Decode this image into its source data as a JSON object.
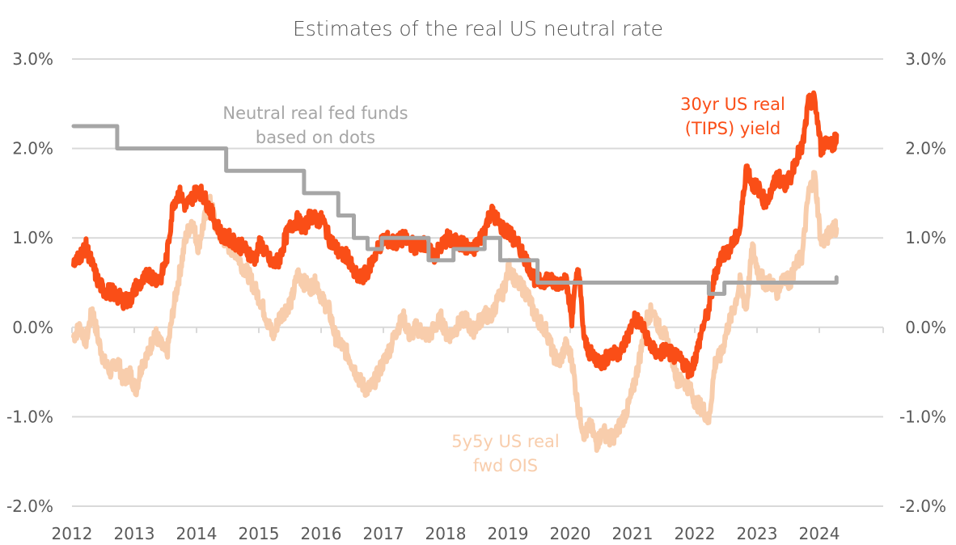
{
  "chart_data": {
    "type": "line",
    "title": "Estimates of the real US neutral rate",
    "xlabel": "",
    "ylabel": "",
    "xlim": [
      2012,
      2025
    ],
    "ylim": [
      -2.0,
      3.0
    ],
    "y_ticks": [
      -2.0,
      -1.0,
      0.0,
      1.0,
      2.0,
      3.0
    ],
    "y_tick_labels": [
      "-2.0%",
      "-1.0%",
      "0.0%",
      "1.0%",
      "2.0%",
      "3.0%"
    ],
    "y_axis_sides": [
      "left",
      "right"
    ],
    "x_ticks": [
      2012,
      2013,
      2014,
      2015,
      2016,
      2017,
      2018,
      2019,
      2020,
      2021,
      2022,
      2023,
      2024
    ],
    "x_tick_labels": [
      "2012",
      "2013",
      "2014",
      "2015",
      "2016",
      "2017",
      "2018",
      "2019",
      "2020",
      "2021",
      "2022",
      "2023",
      "2024"
    ],
    "grid": true,
    "legend": "none (inline annotations)",
    "series": [
      {
        "name": "5y5y US real fwd OIS",
        "label_lines": [
          "5y5y US real",
          "fwd OIS"
        ],
        "label_position": "bottom-center",
        "color": "#f8cdac",
        "x": [
          2012.0,
          2012.1,
          2012.2,
          2012.3,
          2012.4,
          2012.5,
          2012.6,
          2012.7,
          2012.8,
          2012.9,
          2013.0,
          2013.1,
          2013.2,
          2013.3,
          2013.4,
          2013.5,
          2013.6,
          2013.7,
          2013.8,
          2013.9,
          2014.0,
          2014.1,
          2014.2,
          2014.3,
          2014.4,
          2014.5,
          2014.6,
          2014.7,
          2014.8,
          2014.9,
          2015.0,
          2015.1,
          2015.2,
          2015.3,
          2015.4,
          2015.5,
          2015.6,
          2015.7,
          2015.8,
          2015.9,
          2016.0,
          2016.1,
          2016.2,
          2016.3,
          2016.4,
          2016.5,
          2016.6,
          2016.7,
          2016.8,
          2016.9,
          2017.0,
          2017.1,
          2017.2,
          2017.3,
          2017.4,
          2017.5,
          2017.6,
          2017.7,
          2017.8,
          2017.9,
          2018.0,
          2018.1,
          2018.2,
          2018.3,
          2018.4,
          2018.5,
          2018.6,
          2018.7,
          2018.8,
          2018.9,
          2019.0,
          2019.1,
          2019.2,
          2019.3,
          2019.4,
          2019.5,
          2019.6,
          2019.7,
          2019.8,
          2019.9,
          2020.0,
          2020.1,
          2020.2,
          2020.3,
          2020.4,
          2020.5,
          2020.6,
          2020.7,
          2020.8,
          2020.9,
          2021.0,
          2021.1,
          2021.2,
          2021.3,
          2021.4,
          2021.5,
          2021.6,
          2021.7,
          2021.8,
          2021.9,
          2022.0,
          2022.1,
          2022.2,
          2022.3,
          2022.4,
          2022.5,
          2022.6,
          2022.7,
          2022.8,
          2022.9,
          2023.0,
          2023.1,
          2023.2,
          2023.3,
          2023.4,
          2023.5,
          2023.6,
          2023.7,
          2023.8,
          2023.9,
          2024.0,
          2024.1,
          2024.2,
          2024.25
        ],
        "values": [
          -0.1,
          0.0,
          -0.15,
          0.2,
          -0.15,
          -0.4,
          -0.5,
          -0.35,
          -0.6,
          -0.5,
          -0.7,
          -0.4,
          -0.3,
          -0.05,
          -0.2,
          -0.3,
          0.2,
          0.6,
          1.0,
          1.2,
          0.9,
          1.2,
          1.4,
          1.1,
          1.0,
          0.9,
          0.85,
          0.7,
          0.6,
          0.45,
          0.3,
          0.1,
          -0.1,
          0.1,
          0.2,
          0.3,
          0.6,
          0.5,
          0.45,
          0.5,
          0.3,
          0.2,
          -0.1,
          -0.2,
          -0.3,
          -0.45,
          -0.6,
          -0.7,
          -0.65,
          -0.5,
          -0.35,
          -0.2,
          0.0,
          0.1,
          -0.1,
          0.0,
          -0.05,
          -0.1,
          0.0,
          0.1,
          -0.1,
          -0.05,
          0.05,
          0.1,
          -0.05,
          0.05,
          0.15,
          0.1,
          0.3,
          0.4,
          0.7,
          0.5,
          0.45,
          0.35,
          0.15,
          0.05,
          -0.05,
          -0.3,
          -0.4,
          -0.2,
          -0.35,
          -0.9,
          -1.2,
          -1.1,
          -1.3,
          -1.15,
          -1.25,
          -1.2,
          -1.05,
          -0.9,
          -0.65,
          -0.3,
          0.1,
          0.2,
          0.0,
          -0.1,
          -0.3,
          -0.6,
          -0.6,
          -0.7,
          -0.85,
          -0.9,
          -1.05,
          -0.4,
          -0.3,
          0.0,
          0.2,
          0.5,
          0.2,
          0.9,
          0.6,
          0.5,
          0.5,
          0.4,
          0.6,
          0.5,
          0.7,
          0.8,
          1.5,
          1.7,
          0.95,
          1.0,
          1.15,
          1.1
        ]
      },
      {
        "name": "30yr US real (TIPS) yield",
        "label_lines": [
          "30yr US real",
          "(TIPS) yield"
        ],
        "label_position": "top-right",
        "color": "#fa4e17",
        "x": [
          2012.0,
          2012.1,
          2012.2,
          2012.3,
          2012.4,
          2012.5,
          2012.6,
          2012.7,
          2012.8,
          2012.9,
          2013.0,
          2013.1,
          2013.2,
          2013.3,
          2013.4,
          2013.5,
          2013.6,
          2013.7,
          2013.8,
          2013.9,
          2014.0,
          2014.1,
          2014.2,
          2014.3,
          2014.4,
          2014.5,
          2014.6,
          2014.7,
          2014.8,
          2014.9,
          2015.0,
          2015.1,
          2015.2,
          2015.3,
          2015.4,
          2015.5,
          2015.6,
          2015.7,
          2015.8,
          2015.9,
          2016.0,
          2016.1,
          2016.2,
          2016.3,
          2016.4,
          2016.5,
          2016.6,
          2016.7,
          2016.8,
          2016.9,
          2017.0,
          2017.1,
          2017.2,
          2017.3,
          2017.4,
          2017.5,
          2017.6,
          2017.7,
          2017.8,
          2017.9,
          2018.0,
          2018.1,
          2018.2,
          2018.3,
          2018.4,
          2018.5,
          2018.6,
          2018.7,
          2018.8,
          2018.9,
          2019.0,
          2019.1,
          2019.2,
          2019.3,
          2019.4,
          2019.5,
          2019.6,
          2019.7,
          2019.8,
          2019.9,
          2020.0,
          2020.1,
          2020.2,
          2020.3,
          2020.4,
          2020.5,
          2020.6,
          2020.7,
          2020.8,
          2020.9,
          2021.0,
          2021.1,
          2021.2,
          2021.3,
          2021.4,
          2021.5,
          2021.6,
          2021.7,
          2021.8,
          2021.9,
          2022.0,
          2022.1,
          2022.2,
          2022.3,
          2022.4,
          2022.5,
          2022.6,
          2022.7,
          2022.8,
          2022.9,
          2023.0,
          2023.1,
          2023.2,
          2023.3,
          2023.4,
          2023.5,
          2023.6,
          2023.7,
          2023.8,
          2023.9,
          2024.0,
          2024.1,
          2024.2,
          2024.25
        ],
        "values": [
          0.7,
          0.8,
          0.9,
          0.7,
          0.5,
          0.4,
          0.4,
          0.35,
          0.3,
          0.3,
          0.45,
          0.5,
          0.6,
          0.55,
          0.55,
          0.8,
          1.4,
          1.5,
          1.35,
          1.45,
          1.55,
          1.45,
          1.3,
          1.15,
          1.0,
          1.0,
          0.95,
          0.9,
          0.85,
          0.75,
          0.95,
          0.8,
          0.7,
          0.75,
          1.0,
          1.15,
          1.2,
          1.1,
          1.25,
          1.2,
          1.2,
          1.0,
          0.9,
          0.8,
          0.8,
          0.6,
          0.55,
          0.6,
          0.75,
          0.9,
          1.0,
          0.95,
          0.95,
          1.0,
          0.95,
          0.9,
          0.95,
          0.85,
          0.8,
          0.9,
          1.0,
          0.95,
          0.95,
          0.9,
          0.85,
          0.95,
          1.1,
          1.3,
          1.2,
          1.1,
          1.05,
          0.95,
          0.85,
          0.7,
          0.55,
          0.5,
          0.55,
          0.5,
          0.5,
          0.55,
          0.1,
          0.7,
          -0.15,
          -0.3,
          -0.35,
          -0.4,
          -0.3,
          -0.3,
          -0.25,
          -0.1,
          0.1,
          0.05,
          -0.1,
          -0.25,
          -0.3,
          -0.25,
          -0.3,
          -0.35,
          -0.4,
          -0.5,
          -0.3,
          0.0,
          0.2,
          0.6,
          0.8,
          0.85,
          0.95,
          1.1,
          1.8,
          1.6,
          1.55,
          1.4,
          1.5,
          1.7,
          1.6,
          1.65,
          1.9,
          2.0,
          2.5,
          2.55,
          2.0,
          2.1,
          2.05,
          2.15
        ]
      },
      {
        "name": "Neutral real fed funds based on dots",
        "label_lines": [
          "Neutral real fed funds",
          "based on dots"
        ],
        "label_position": "top-center",
        "color": "#a6a6a6",
        "step": true,
        "x": [
          2012.0,
          2012.7,
          2014.45,
          2015.7,
          2016.25,
          2016.5,
          2016.72,
          2016.95,
          2017.7,
          2018.1,
          2018.6,
          2018.85,
          2019.45,
          2022.2,
          2022.45,
          2024.25
        ],
        "values": [
          2.25,
          2.0,
          1.75,
          1.5,
          1.25,
          1.0,
          0.875,
          1.0,
          0.75,
          0.875,
          1.0,
          0.75,
          0.5,
          0.375,
          0.5,
          0.56
        ]
      }
    ]
  }
}
